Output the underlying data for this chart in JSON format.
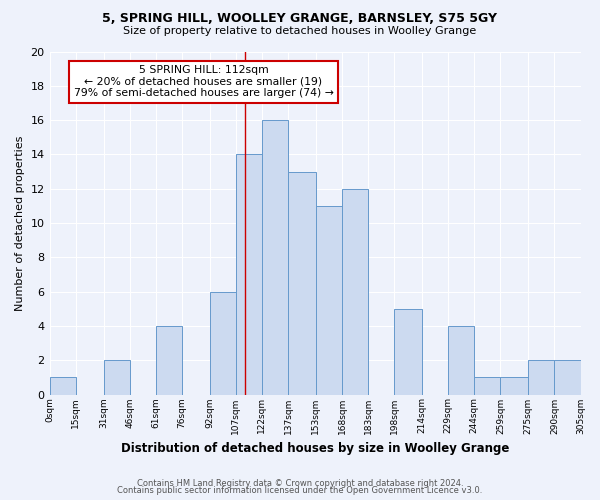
{
  "title1": "5, SPRING HILL, WOOLLEY GRANGE, BARNSLEY, S75 5GY",
  "title2": "Size of property relative to detached houses in Woolley Grange",
  "xlabel": "Distribution of detached houses by size in Woolley Grange",
  "ylabel": "Number of detached properties",
  "annotation_line1": "5 SPRING HILL: 112sqm",
  "annotation_line2": "← 20% of detached houses are smaller (19)",
  "annotation_line3": "79% of semi-detached houses are larger (74) →",
  "bin_edges": [
    0,
    15,
    31,
    46,
    61,
    76,
    92,
    107,
    122,
    137,
    153,
    168,
    183,
    198,
    214,
    229,
    244,
    259,
    275,
    290,
    305
  ],
  "bar_heights": [
    1,
    0,
    2,
    0,
    4,
    0,
    6,
    14,
    16,
    13,
    11,
    12,
    0,
    5,
    0,
    4,
    1,
    1,
    2,
    2
  ],
  "tick_labels": [
    "0sqm",
    "15sqm",
    "31sqm",
    "46sqm",
    "61sqm",
    "76sqm",
    "92sqm",
    "107sqm",
    "122sqm",
    "137sqm",
    "153sqm",
    "168sqm",
    "183sqm",
    "198sqm",
    "214sqm",
    "229sqm",
    "244sqm",
    "259sqm",
    "275sqm",
    "290sqm",
    "305sqm"
  ],
  "bar_color": "#ccdaf0",
  "bar_edge_color": "#6699cc",
  "property_line_x": 112,
  "ylim": [
    0,
    20
  ],
  "yticks": [
    0,
    2,
    4,
    6,
    8,
    10,
    12,
    14,
    16,
    18,
    20
  ],
  "background_color": "#eef2fb",
  "grid_color": "#ffffff",
  "annotation_box_color": "#ffffff",
  "annotation_box_edge": "#cc0000",
  "property_line_color": "#cc0000",
  "footer1": "Contains HM Land Registry data © Crown copyright and database right 2024.",
  "footer2": "Contains public sector information licensed under the Open Government Licence v3.0."
}
